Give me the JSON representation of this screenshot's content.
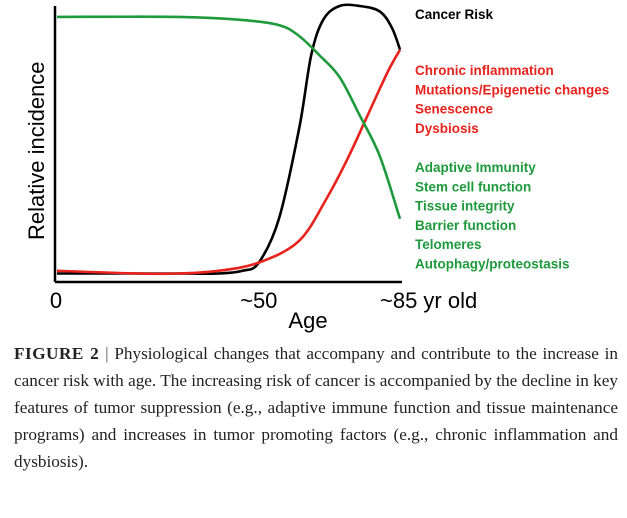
{
  "chart_data": {
    "type": "line",
    "xlabel": "Age",
    "ylabel": "Relative incidence",
    "x_ticks": [
      "0",
      "~50",
      "~85 yr old"
    ],
    "x_tick_values": [
      0,
      50,
      85
    ],
    "xlim": [
      0,
      85
    ],
    "ylim": [
      0,
      1
    ],
    "grid": false,
    "series": [
      {
        "name": "Cancer Risk",
        "color": "#000000",
        "x": [
          0,
          20,
          30,
          40,
          46,
          50,
          55,
          60,
          63,
          66,
          70,
          75,
          80,
          83,
          85
        ],
        "y": [
          0.02,
          0.02,
          0.02,
          0.02,
          0.03,
          0.06,
          0.22,
          0.55,
          0.82,
          0.95,
          1.0,
          1.0,
          0.98,
          0.92,
          0.84
        ]
      },
      {
        "color": "#e8221c",
        "x": [
          0,
          20,
          30,
          40,
          50,
          60,
          67,
          72,
          77,
          82,
          85
        ],
        "y": [
          0.03,
          0.02,
          0.02,
          0.03,
          0.06,
          0.14,
          0.3,
          0.44,
          0.6,
          0.76,
          0.84
        ]
      },
      {
        "color": "#1e9a3c",
        "x": [
          0,
          30,
          45,
          55,
          60,
          65,
          70,
          75,
          80,
          85
        ],
        "y": [
          0.96,
          0.96,
          0.95,
          0.93,
          0.89,
          0.82,
          0.74,
          0.6,
          0.45,
          0.22
        ]
      }
    ],
    "legend": {
      "placement": "right",
      "groups": [
        {
          "color": "#000000",
          "items": [
            "Cancer Risk"
          ]
        },
        {
          "color": "#e8221c",
          "items": [
            "Chronic inflammation",
            "Mutations/Epigenetic changes",
            "Senescence",
            "Dysbiosis"
          ]
        },
        {
          "color": "#1e9a3c",
          "items": [
            "Adaptive Immunity",
            "Stem cell function",
            "Tissue integrity",
            "Barrier function",
            "Telomeres",
            "Autophagy/proteostasis"
          ]
        }
      ]
    }
  },
  "caption": {
    "figure_label": "FIGURE 2",
    "separator": "|",
    "text": "Physiological changes that accompany and contribute to the increase in cancer risk with age. The increasing risk of cancer is accompanied by the decline in key features of tumor suppression (e.g., adaptive immune function and tissue maintenance programs) and increases in tumor promoting factors (e.g., chronic inflammation and dysbiosis)."
  }
}
